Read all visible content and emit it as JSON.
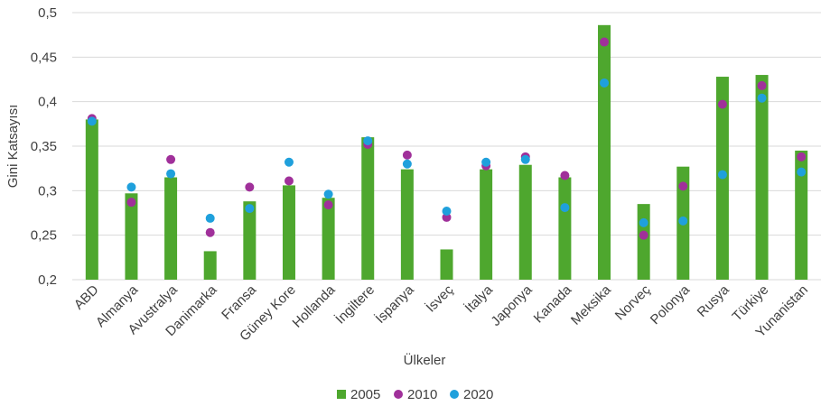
{
  "chart_data": {
    "type": "bar",
    "xlabel": "Ülkeler",
    "ylabel": "Gini Katsayısı",
    "ylim": [
      0.2,
      0.5
    ],
    "yticks": [
      "0,2",
      "0,25",
      "0,3",
      "0,35",
      "0,4",
      "0,45",
      "0,5"
    ],
    "ytick_values": [
      0.2,
      0.25,
      0.3,
      0.35,
      0.4,
      0.45,
      0.5
    ],
    "grid": true,
    "legend_position": "bottom",
    "categories": [
      "ABD",
      "Almanya",
      "Avustralya",
      "Danimarka",
      "Fransa",
      "Güney Kore",
      "Hollanda",
      "İngiltere",
      "İspanya",
      "İsveç",
      "İtalya",
      "Japonya",
      "Kanada",
      "Meksika",
      "Norveç",
      "Polonya",
      "Rusya",
      "Türkiye",
      "Yunanistan"
    ],
    "series": [
      {
        "name": "2005",
        "kind": "bar",
        "color": "#4ea72e",
        "values": [
          0.38,
          0.297,
          0.315,
          0.232,
          0.288,
          0.306,
          0.292,
          0.36,
          0.324,
          0.234,
          0.324,
          0.329,
          0.315,
          0.486,
          0.285,
          0.327,
          0.428,
          0.43,
          0.345
        ]
      },
      {
        "name": "2010",
        "kind": "marker",
        "color": "#a0309a",
        "values": [
          0.381,
          0.287,
          0.335,
          0.253,
          0.304,
          0.311,
          0.284,
          0.352,
          0.34,
          0.27,
          0.328,
          0.338,
          0.317,
          0.467,
          0.25,
          0.305,
          0.397,
          0.418,
          0.338
        ]
      },
      {
        "name": "2020",
        "kind": "marker",
        "color": "#1fa0dc",
        "values": [
          0.378,
          0.304,
          0.319,
          0.269,
          0.28,
          0.332,
          0.296,
          0.356,
          0.33,
          0.277,
          0.332,
          0.335,
          0.281,
          0.421,
          0.264,
          0.266,
          0.318,
          0.404,
          0.321
        ]
      }
    ]
  }
}
